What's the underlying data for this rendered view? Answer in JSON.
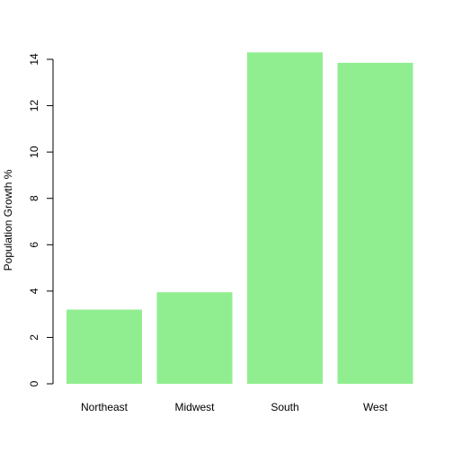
{
  "chart_data": {
    "type": "bar",
    "categories": [
      "Northeast",
      "Midwest",
      "South",
      "West"
    ],
    "values": [
      3.2,
      3.95,
      14.3,
      13.85
    ],
    "ylabel": "Population Growth %",
    "xlabel": "",
    "ylim": [
      0,
      14
    ],
    "yticks": [
      0,
      2,
      4,
      6,
      8,
      10,
      12,
      14
    ],
    "grid": false,
    "bar_color": "#90ee90"
  }
}
